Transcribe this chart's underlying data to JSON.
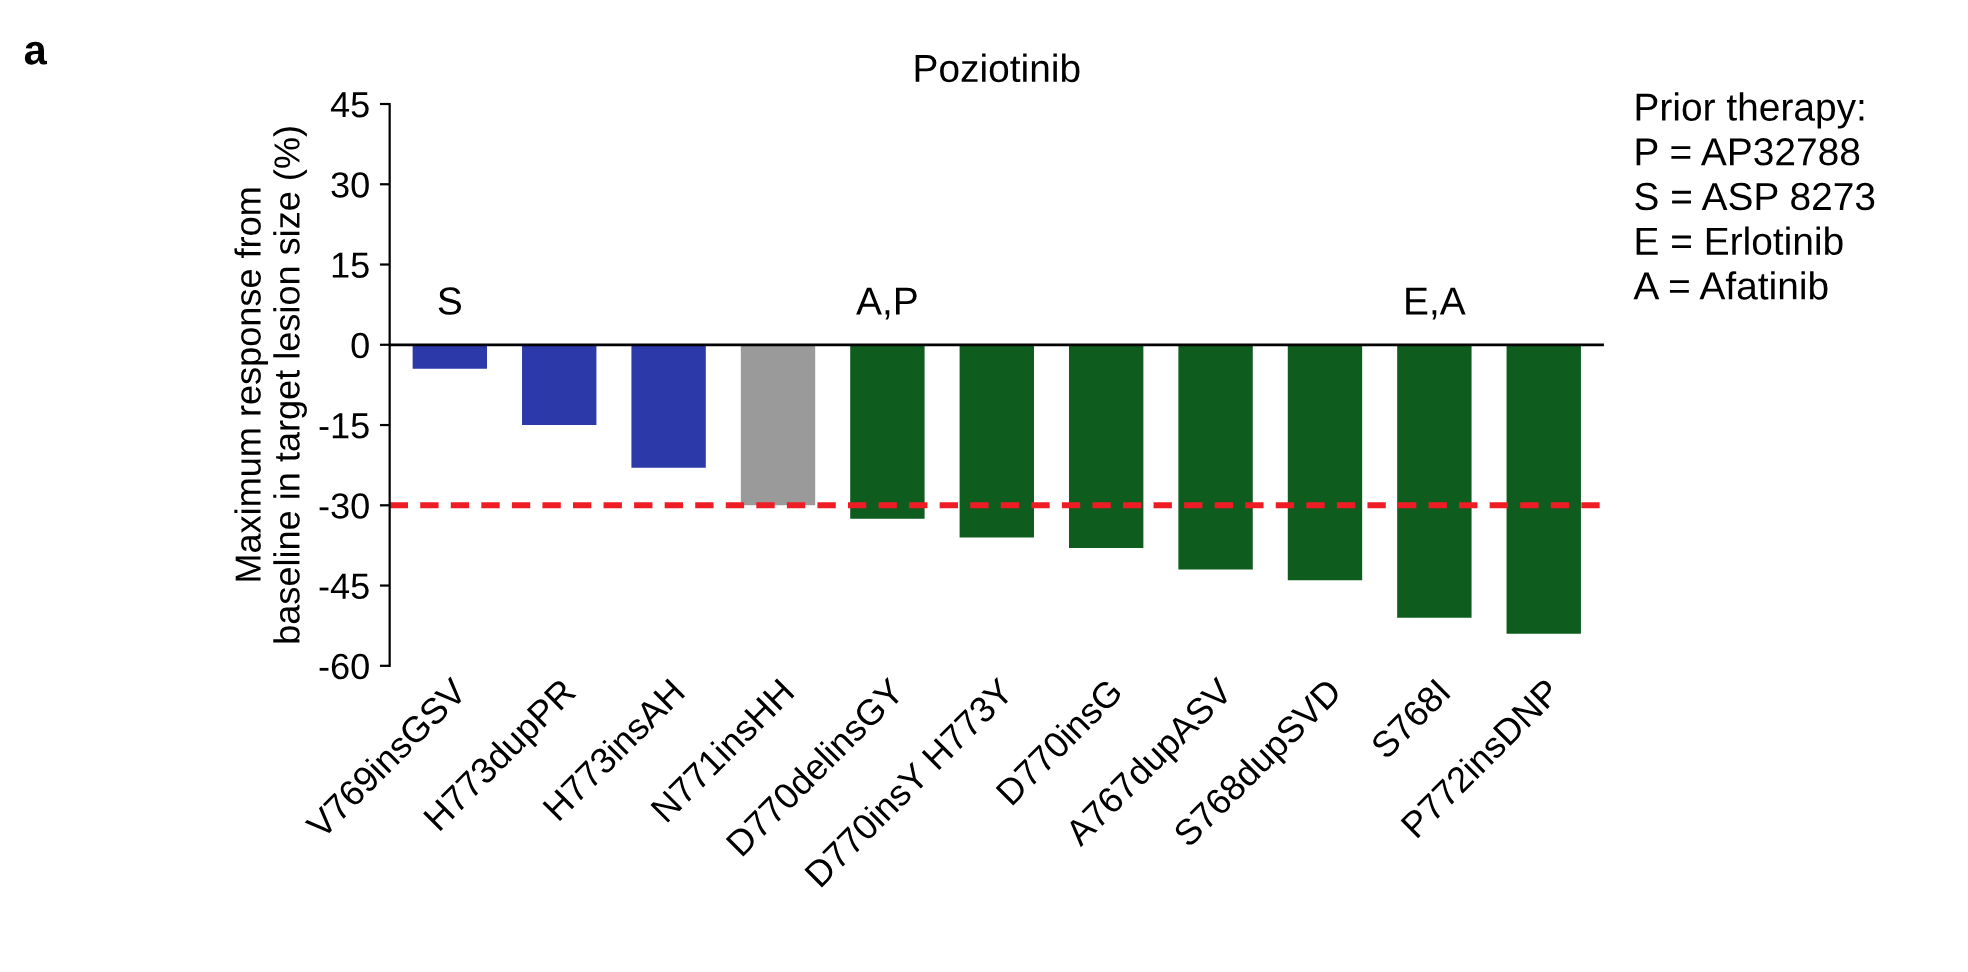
{
  "chart_data": {
    "type": "bar",
    "title": "Poziotinib",
    "ylabel": "Maximum response from\nbaseline in target lesion size (%)",
    "categories": [
      "V769insGSV",
      "H773dupPR",
      "H773insAH",
      "N771insHH",
      "D770delinsGY",
      "D770insY H773Y",
      "D770insG",
      "A767dupASV",
      "S768dupSVD",
      "S768I",
      "P772insDNP"
    ],
    "values": [
      -4.5,
      -15,
      -23,
      -30,
      -32.5,
      -36,
      -38,
      -42,
      -44,
      -51,
      -54
    ],
    "colors": [
      "#2b3aa8",
      "#2b3aa8",
      "#2b3aa8",
      "#9a9a9a",
      "#0e5c1e",
      "#0e5c1e",
      "#0e5c1e",
      "#0e5c1e",
      "#0e5c1e",
      "#0e5c1e",
      "#0e5c1e"
    ],
    "ylim": [
      -60,
      45
    ],
    "yticks": [
      -60,
      -45,
      -30,
      -15,
      0,
      15,
      30,
      45
    ],
    "ref_lines": [
      {
        "axis": "y",
        "value": -30,
        "color": "#ee1c25",
        "line_style": "dashed"
      }
    ],
    "annotations": [
      {
        "text": "S",
        "x": "V769insGSV",
        "y": 0
      },
      {
        "text": "A,P",
        "x": "D770delinsGY",
        "y": 0
      },
      {
        "text": "E,A",
        "x": "S768I",
        "y": 0
      },
      "Prior therapy:\nP = AP32788\nS = ASP 8273\nE = Erlotinib\nA = Afatinib",
      "a"
    ],
    "grid": false,
    "legend": false
  }
}
